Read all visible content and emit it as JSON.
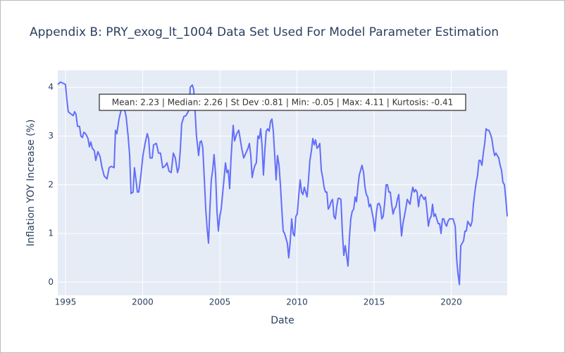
{
  "chart_data": {
    "type": "line",
    "title": "Appendix B: PRY_exog_lt_1004 Data Set Used For Model Parameter Estimation",
    "x_label": "Date",
    "y_label": "Inflation YOY Increase (%)",
    "annotation": "Mean: 2.23 | Median: 2.26 | St Dev :0.81 | Min: -0.05 | Max: 4.11 | Kurtosis: -0.41",
    "xlim": [
      1994.5,
      2023.63
    ],
    "ylim": [
      -0.27,
      4.35
    ],
    "xticks": [
      1995,
      2000,
      2005,
      2010,
      2015,
      2020
    ],
    "yticks": [
      0,
      1,
      2,
      3,
      4
    ],
    "grid": true,
    "series": [
      {
        "color": "#636efa",
        "x": [
          1994.5,
          1994.68,
          1995.0,
          1995.09,
          1995.18,
          1995.37,
          1995.5,
          1995.59,
          1995.68,
          1995.78,
          1995.91,
          1996.0,
          1996.1,
          1996.19,
          1996.32,
          1996.46,
          1996.55,
          1996.64,
          1996.74,
          1996.87,
          1996.96,
          1997.1,
          1997.24,
          1997.37,
          1997.51,
          1997.69,
          1997.83,
          1997.97,
          1998.15,
          1998.24,
          1998.33,
          1998.47,
          1998.65,
          1998.79,
          1998.93,
          1999.06,
          1999.16,
          1999.25,
          1999.38,
          1999.47,
          1999.57,
          1999.66,
          1999.75,
          1999.89,
          2000.02,
          2000.16,
          2000.3,
          2000.39,
          2000.48,
          2000.62,
          2000.71,
          2000.89,
          2001.03,
          2001.16,
          2001.3,
          2001.44,
          2001.58,
          2001.71,
          2001.85,
          2001.99,
          2002.12,
          2002.26,
          2002.35,
          2002.44,
          2002.53,
          2002.67,
          2002.81,
          2002.95,
          2003.04,
          2003.08,
          2003.22,
          2003.31,
          2003.4,
          2003.49,
          2003.63,
          2003.72,
          2003.81,
          2003.9,
          2004.0,
          2004.09,
          2004.18,
          2004.27,
          2004.36,
          2004.45,
          2004.54,
          2004.63,
          2004.73,
          2004.82,
          2004.91,
          2005.0,
          2005.09,
          2005.18,
          2005.27,
          2005.37,
          2005.46,
          2005.55,
          2005.64,
          2005.73,
          2005.82,
          2005.87,
          2005.96,
          2006.1,
          2006.23,
          2006.32,
          2006.42,
          2006.55,
          2006.69,
          2006.83,
          2006.92,
          2007.01,
          2007.1,
          2007.19,
          2007.28,
          2007.37,
          2007.47,
          2007.56,
          2007.65,
          2007.74,
          2007.83,
          2007.92,
          2008.01,
          2008.11,
          2008.2,
          2008.29,
          2008.38,
          2008.47,
          2008.56,
          2008.65,
          2008.74,
          2008.84,
          2008.93,
          2009.02,
          2009.11,
          2009.2,
          2009.29,
          2009.38,
          2009.47,
          2009.57,
          2009.66,
          2009.75,
          2009.84,
          2009.93,
          2010.02,
          2010.11,
          2010.21,
          2010.3,
          2010.39,
          2010.48,
          2010.57,
          2010.66,
          2010.75,
          2010.84,
          2010.94,
          2011.03,
          2011.12,
          2011.21,
          2011.3,
          2011.39,
          2011.48,
          2011.58,
          2011.67,
          2011.76,
          2011.85,
          2011.94,
          2012.03,
          2012.12,
          2012.21,
          2012.31,
          2012.4,
          2012.49,
          2012.58,
          2012.67,
          2012.76,
          2012.85,
          2012.95,
          2013.04,
          2013.13,
          2013.22,
          2013.31,
          2013.4,
          2013.49,
          2013.58,
          2013.68,
          2013.77,
          2013.86,
          2013.95,
          2014.04,
          2014.13,
          2014.22,
          2014.32,
          2014.41,
          2014.5,
          2014.59,
          2014.68,
          2014.77,
          2014.86,
          2014.95,
          2015.05,
          2015.14,
          2015.23,
          2015.32,
          2015.41,
          2015.5,
          2015.59,
          2015.68,
          2015.78,
          2015.87,
          2015.96,
          2016.05,
          2016.14,
          2016.23,
          2016.32,
          2016.42,
          2016.51,
          2016.6,
          2016.69,
          2016.78,
          2016.87,
          2016.96,
          2017.05,
          2017.15,
          2017.24,
          2017.33,
          2017.42,
          2017.51,
          2017.6,
          2017.69,
          2017.79,
          2017.88,
          2017.97,
          2018.06,
          2018.15,
          2018.24,
          2018.33,
          2018.42,
          2018.52,
          2018.61,
          2018.7,
          2018.79,
          2018.88,
          2018.97,
          2019.06,
          2019.16,
          2019.25,
          2019.34,
          2019.43,
          2019.52,
          2019.61,
          2019.7,
          2019.79,
          2019.89,
          2019.98,
          2020.12,
          2020.26,
          2020.35,
          2020.43,
          2020.53,
          2020.62,
          2020.71,
          2020.8,
          2020.89,
          2020.98,
          2021.07,
          2021.16,
          2021.26,
          2021.35,
          2021.44,
          2021.53,
          2021.62,
          2021.71,
          2021.8,
          2021.89,
          2021.99,
          2022.08,
          2022.17,
          2022.26,
          2022.35,
          2022.44,
          2022.53,
          2022.63,
          2022.72,
          2022.81,
          2022.9,
          2022.99,
          2023.08,
          2023.17,
          2023.26,
          2023.35,
          2023.45,
          2023.54,
          2023.63
        ],
        "values": [
          4.06,
          4.11,
          4.06,
          3.75,
          3.5,
          3.45,
          3.42,
          3.5,
          3.45,
          3.2,
          3.2,
          3.0,
          2.97,
          3.08,
          3.04,
          2.95,
          2.78,
          2.88,
          2.75,
          2.7,
          2.5,
          2.68,
          2.58,
          2.35,
          2.18,
          2.12,
          2.35,
          2.38,
          2.35,
          3.12,
          3.05,
          3.35,
          3.6,
          3.6,
          3.4,
          3.0,
          2.6,
          1.82,
          1.85,
          2.35,
          2.1,
          1.85,
          1.85,
          2.2,
          2.6,
          2.85,
          3.05,
          2.95,
          2.55,
          2.55,
          2.82,
          2.85,
          2.65,
          2.65,
          2.35,
          2.38,
          2.45,
          2.28,
          2.25,
          2.65,
          2.55,
          2.25,
          2.35,
          2.7,
          3.25,
          3.4,
          3.42,
          3.5,
          3.6,
          4.0,
          4.05,
          3.95,
          3.5,
          3.0,
          2.6,
          2.88,
          2.9,
          2.75,
          2.1,
          1.5,
          1.1,
          0.8,
          1.5,
          2.1,
          2.3,
          2.62,
          2.2,
          1.45,
          1.05,
          1.35,
          1.5,
          1.8,
          2.1,
          2.45,
          2.25,
          2.3,
          1.92,
          2.55,
          3.0,
          3.22,
          2.9,
          3.05,
          3.12,
          2.95,
          2.75,
          2.55,
          2.65,
          2.75,
          2.85,
          2.6,
          2.15,
          2.3,
          2.4,
          2.45,
          3.0,
          2.95,
          3.15,
          2.8,
          2.2,
          2.7,
          3.1,
          3.15,
          3.1,
          3.3,
          3.35,
          3.1,
          2.6,
          2.1,
          2.6,
          2.4,
          2.0,
          1.5,
          1.05,
          1.0,
          0.9,
          0.8,
          0.5,
          0.85,
          1.3,
          1.0,
          0.95,
          1.35,
          1.4,
          1.75,
          2.1,
          1.85,
          1.8,
          1.95,
          1.85,
          1.75,
          2.1,
          2.5,
          2.7,
          2.95,
          2.82,
          2.92,
          2.75,
          2.78,
          2.85,
          2.3,
          2.15,
          1.95,
          1.85,
          1.85,
          1.5,
          1.55,
          1.65,
          1.7,
          1.35,
          1.3,
          1.55,
          1.72,
          1.72,
          1.7,
          1.0,
          0.55,
          0.75,
          0.55,
          0.33,
          0.9,
          1.3,
          1.45,
          1.5,
          1.75,
          1.65,
          1.95,
          2.2,
          2.3,
          2.4,
          2.25,
          1.95,
          1.8,
          1.75,
          1.55,
          1.6,
          1.45,
          1.3,
          1.05,
          1.4,
          1.6,
          1.62,
          1.55,
          1.3,
          1.35,
          1.6,
          2.0,
          2.0,
          1.85,
          1.85,
          1.6,
          1.4,
          1.5,
          1.55,
          1.7,
          1.8,
          1.35,
          0.95,
          1.2,
          1.35,
          1.5,
          1.7,
          1.65,
          1.6,
          1.8,
          1.95,
          1.85,
          1.9,
          1.85,
          1.55,
          1.75,
          1.8,
          1.75,
          1.7,
          1.75,
          1.5,
          1.15,
          1.3,
          1.35,
          1.6,
          1.35,
          1.4,
          1.3,
          1.2,
          1.2,
          1.0,
          1.3,
          1.3,
          1.2,
          1.15,
          1.25,
          1.3,
          1.3,
          1.3,
          1.15,
          0.5,
          0.2,
          -0.05,
          0.75,
          0.8,
          0.85,
          1.05,
          1.05,
          1.25,
          1.2,
          1.15,
          1.25,
          1.6,
          1.85,
          2.05,
          2.2,
          2.5,
          2.5,
          2.4,
          2.65,
          2.85,
          3.15,
          3.12,
          3.12,
          3.05,
          2.95,
          2.75,
          2.6,
          2.65,
          2.6,
          2.55,
          2.4,
          2.3,
          2.05,
          2.0,
          1.7,
          1.35
        ]
      }
    ]
  }
}
